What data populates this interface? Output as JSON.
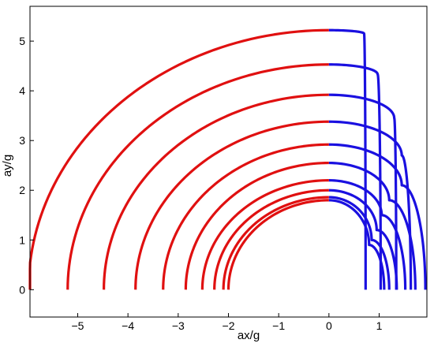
{
  "chart_data": {
    "type": "line",
    "title": "",
    "xlabel": "ax/g",
    "ylabel": "ay/g",
    "xlim": [
      -5.95,
      1.95
    ],
    "ylim": [
      -0.55,
      5.7
    ],
    "xticks": [
      -5,
      -4,
      -3,
      -2,
      -1,
      0,
      1
    ],
    "yticks": [
      0,
      1,
      2,
      3,
      4,
      5
    ],
    "xtick_labels": [
      "−5",
      "−4",
      "−3",
      "−2",
      "−1",
      "0",
      "1"
    ],
    "ytick_labels": [
      "0",
      "1",
      "2",
      "3",
      "4",
      "5"
    ],
    "grid": false,
    "legend": "none",
    "colors": {
      "left_half": "#e01010",
      "right_half": "#1a10e0"
    },
    "envelopes": [
      {
        "left_radius": 5.98,
        "top": 5.22,
        "right_top_end": [
          0.7,
          5.15
        ],
        "right_x": 0.73
      },
      {
        "left_radius": 5.2,
        "top": 4.53,
        "right_top_end": [
          0.97,
          4.33
        ],
        "right_x": 1.03
      },
      {
        "left_radius": 4.48,
        "top": 3.92,
        "right_top_end": [
          1.3,
          3.45
        ],
        "right_x": 1.34
      },
      {
        "left_radius": 3.85,
        "top": 3.38,
        "right_top_end": [
          1.45,
          2.7
        ],
        "right_x": 1.63
      },
      {
        "left_radius": 3.3,
        "top": 2.92,
        "right_top_end": [
          1.45,
          2.1
        ],
        "right_x": 1.92
      },
      {
        "left_radius": 2.85,
        "top": 2.55,
        "right_top_end": [
          1.2,
          1.8
        ],
        "right_x": 1.72
      },
      {
        "left_radius": 2.52,
        "top": 2.2,
        "right_top_end": [
          1.05,
          1.5
        ],
        "right_x": 1.52
      },
      {
        "left_radius": 2.28,
        "top": 2.0,
        "right_top_end": [
          0.95,
          1.2
        ],
        "right_x": 1.35
      },
      {
        "left_radius": 2.1,
        "top": 1.86,
        "right_top_end": [
          0.85,
          1.0
        ],
        "right_x": 1.2
      },
      {
        "left_radius": 2.0,
        "top": 1.8,
        "right_top_end": [
          0.8,
          0.9
        ],
        "right_x": 1.1
      }
    ]
  }
}
